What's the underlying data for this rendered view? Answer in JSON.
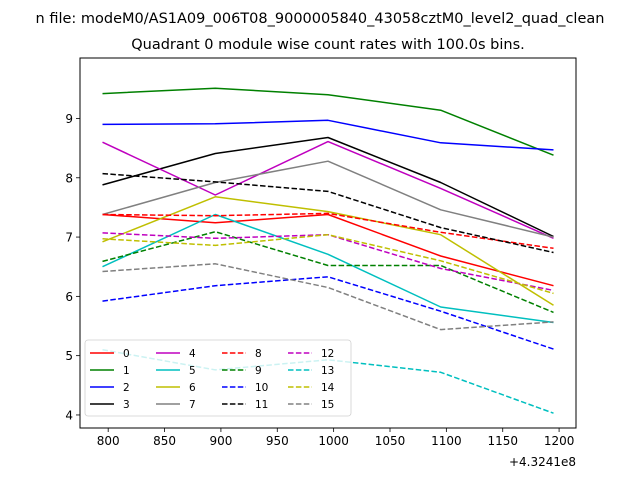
{
  "chart_data": {
    "type": "line",
    "suptitle": "n file: modeM0/AS1A09_006T08_9000005840_43058cztM0_level2_quad_clean",
    "title": "Quadrant 0 module wise count rates with 100.0s bins.",
    "xlabel": "",
    "ylabel": "",
    "x_offset_label": "+4.3241e8",
    "x_offset": 432410000,
    "x": [
      432410795,
      432410895,
      432410995,
      432411095,
      432411195
    ],
    "xlim": [
      432410775,
      432411215
    ],
    "ylim": [
      3.78,
      10.02
    ],
    "xticks": [
      800,
      850,
      900,
      950,
      1000,
      1050,
      1100,
      1150,
      1200
    ],
    "yticks": [
      4,
      5,
      6,
      7,
      8,
      9
    ],
    "grid": false,
    "legend": {
      "placement": "lower-left",
      "columns": 4
    },
    "series": [
      {
        "name": "0",
        "color": "#ff0000",
        "dash": "solid",
        "values": [
          7.38,
          7.24,
          7.38,
          6.68,
          6.18
        ]
      },
      {
        "name": "1",
        "color": "#008000",
        "dash": "solid",
        "values": [
          9.42,
          9.51,
          9.4,
          9.14,
          8.38
        ]
      },
      {
        "name": "2",
        "color": "#0000ff",
        "dash": "solid",
        "values": [
          8.9,
          8.91,
          8.97,
          8.59,
          8.47
        ]
      },
      {
        "name": "3",
        "color": "#000000",
        "dash": "solid",
        "values": [
          7.88,
          8.41,
          8.68,
          7.92,
          7.01
        ]
      },
      {
        "name": "4",
        "color": "#bf00bf",
        "dash": "solid",
        "values": [
          8.6,
          7.71,
          8.61,
          7.82,
          6.98
        ]
      },
      {
        "name": "5",
        "color": "#00bfbf",
        "dash": "solid",
        "values": [
          6.5,
          7.38,
          6.71,
          5.82,
          5.56
        ]
      },
      {
        "name": "6",
        "color": "#bfbf00",
        "dash": "solid",
        "values": [
          6.92,
          7.68,
          7.43,
          7.04,
          5.85
        ]
      },
      {
        "name": "7",
        "color": "#808080",
        "dash": "solid",
        "values": [
          7.38,
          7.92,
          8.28,
          7.46,
          7.0
        ]
      },
      {
        "name": "8",
        "color": "#ff0000",
        "dash": "dashed",
        "values": [
          7.38,
          7.36,
          7.4,
          7.08,
          6.81
        ]
      },
      {
        "name": "9",
        "color": "#008000",
        "dash": "dashed",
        "values": [
          6.59,
          7.09,
          6.52,
          6.52,
          5.73
        ]
      },
      {
        "name": "10",
        "color": "#0000ff",
        "dash": "dashed",
        "values": [
          5.92,
          6.18,
          6.33,
          5.75,
          5.11
        ]
      },
      {
        "name": "11",
        "color": "#000000",
        "dash": "dashed",
        "values": [
          8.07,
          7.93,
          7.77,
          7.16,
          6.74
        ]
      },
      {
        "name": "12",
        "color": "#bf00bf",
        "dash": "dashed",
        "values": [
          7.07,
          6.98,
          7.04,
          6.47,
          6.1
        ]
      },
      {
        "name": "13",
        "color": "#00bfbf",
        "dash": "dashed",
        "values": [
          5.1,
          4.76,
          4.93,
          4.72,
          4.03
        ]
      },
      {
        "name": "14",
        "color": "#bfbf00",
        "dash": "dashed",
        "values": [
          6.97,
          6.86,
          7.04,
          6.6,
          6.05
        ]
      },
      {
        "name": "15",
        "color": "#808080",
        "dash": "dashed",
        "values": [
          6.42,
          6.55,
          6.15,
          5.44,
          5.57
        ]
      }
    ]
  }
}
